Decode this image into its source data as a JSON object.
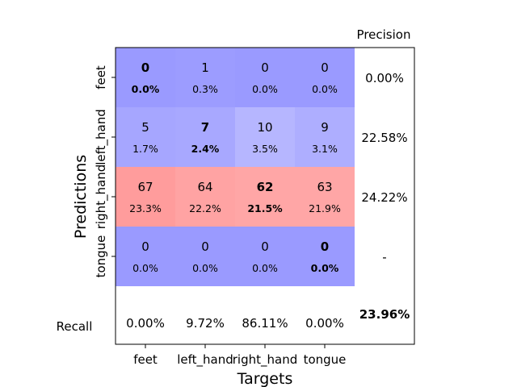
{
  "chart_data": {
    "type": "heatmap",
    "title": "",
    "xlabel": "Targets",
    "ylabel": "Predictions",
    "x_categories": [
      "feet",
      "left_hand",
      "right_hand",
      "tongue"
    ],
    "y_categories": [
      "feet",
      "left_hand",
      "right_hand",
      "tongue"
    ],
    "counts": [
      [
        0,
        1,
        0,
        0
      ],
      [
        5,
        7,
        10,
        9
      ],
      [
        67,
        64,
        62,
        63
      ],
      [
        0,
        0,
        0,
        0
      ]
    ],
    "percents": [
      [
        "0.0%",
        "0.3%",
        "0.0%",
        "0.0%"
      ],
      [
        "1.7%",
        "2.4%",
        "3.5%",
        "3.1%"
      ],
      [
        "23.3%",
        "22.2%",
        "21.5%",
        "21.9%"
      ],
      [
        "0.0%",
        "0.0%",
        "0.0%",
        "0.0%"
      ]
    ],
    "cell_colors": [
      [
        "#9a9aff",
        "#9c9cff",
        "#9a9aff",
        "#9a9aff"
      ],
      [
        "#a6a6ff",
        "#a8a8ff",
        "#b6b6ff",
        "#aeaeff"
      ],
      [
        "#ff9c9c",
        "#ffa3a3",
        "#ffa6a6",
        "#ffa6a6"
      ],
      [
        "#9a9aff",
        "#9a9aff",
        "#9a9aff",
        "#9a9aff"
      ]
    ],
    "precision_label": "Precision",
    "precision": [
      "0.00%",
      "22.58%",
      "24.22%",
      "-"
    ],
    "recall_label": "Recall",
    "recall": [
      "0.00%",
      "9.72%",
      "86.11%",
      "0.00%"
    ],
    "overall_accuracy": "23.96%"
  }
}
